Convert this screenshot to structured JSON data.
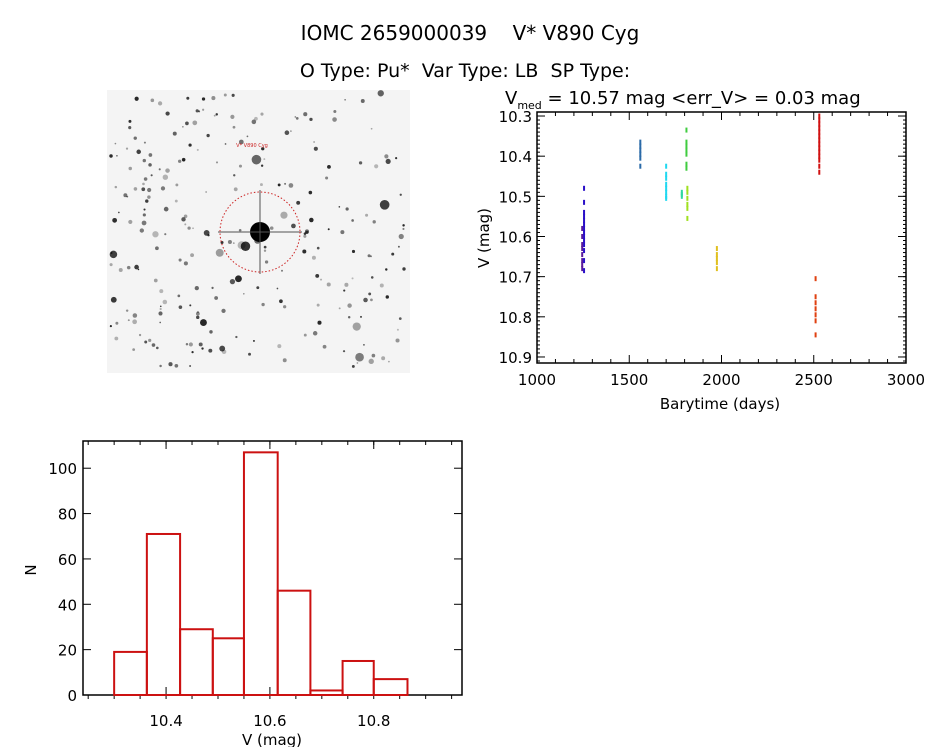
{
  "header": {
    "title": "IOMC 2659000039    V* V890 Cyg",
    "subtitle": "O Type: Pu*  Var Type: LB  SP Type:"
  },
  "image_panel": {
    "icon": "star-field-image",
    "target_label": "V* V890 Cyg",
    "circle_color": "#cc2222"
  },
  "chart_data": [
    {
      "type": "scatter",
      "title_prefix": "V",
      "title_sub": "med",
      "title_rest": " = 10.57 mag <err_V> = 0.03 mag",
      "xlabel": "Barytime (days)",
      "ylabel": "V (mag)",
      "xlim": [
        1000,
        3000
      ],
      "ylim": [
        10.29,
        10.915
      ],
      "y_inverted": true,
      "xticks": [
        "1000",
        "1500",
        "2000",
        "2500",
        "3000"
      ],
      "yticks": [
        "10.3",
        "10.4",
        "10.5",
        "10.6",
        "10.7",
        "10.8",
        "10.9"
      ],
      "series": [
        {
          "name": "group1",
          "color": "#5a1a9a",
          "x": [
            1245,
            1245,
            1245,
            1245,
            1245,
            1245,
            1245,
            1245
          ],
          "y": [
            10.58,
            10.6,
            10.62,
            10.63,
            10.645,
            10.66,
            10.67,
            10.68
          ]
        },
        {
          "name": "group2",
          "color": "#2a10c8",
          "x": [
            1255,
            1255,
            1255,
            1255,
            1255,
            1255,
            1255,
            1255,
            1255,
            1255,
            1255,
            1255,
            1255,
            1255
          ],
          "y": [
            10.48,
            10.515,
            10.54,
            10.55,
            10.56,
            10.57,
            10.58,
            10.59,
            10.6,
            10.61,
            10.62,
            10.635,
            10.66,
            10.685
          ]
        },
        {
          "name": "group3",
          "color": "#2a6aa8",
          "x": [
            1560,
            1560,
            1560,
            1560,
            1560,
            1560
          ],
          "y": [
            10.365,
            10.375,
            10.385,
            10.395,
            10.405,
            10.425
          ]
        },
        {
          "name": "group4",
          "color": "#20d8f0",
          "x": [
            1700,
            1700,
            1700,
            1700,
            1700,
            1700,
            1700,
            1700
          ],
          "y": [
            10.425,
            10.445,
            10.455,
            10.47,
            10.48,
            10.49,
            10.5,
            10.505
          ]
        },
        {
          "name": "group5",
          "color": "#30d8a0",
          "x": [
            1785,
            1785,
            1785
          ],
          "y": [
            10.49,
            10.495,
            10.5
          ]
        },
        {
          "name": "group6",
          "color": "#40cc40",
          "x": [
            1810,
            1810,
            1810,
            1810,
            1810,
            1810,
            1810
          ],
          "y": [
            10.335,
            10.365,
            10.375,
            10.385,
            10.395,
            10.42,
            10.43
          ]
        },
        {
          "name": "group7",
          "color": "#a0e020",
          "x": [
            1815,
            1815,
            1815,
            1815,
            1815,
            1815
          ],
          "y": [
            10.48,
            10.49,
            10.505,
            10.52,
            10.53,
            10.555
          ]
        },
        {
          "name": "group8",
          "color": "#e0c020",
          "x": [
            1975,
            1975,
            1975,
            1975,
            1975
          ],
          "y": [
            10.63,
            10.645,
            10.655,
            10.665,
            10.68
          ]
        },
        {
          "name": "group9",
          "color": "#e04010",
          "x": [
            2510,
            2510,
            2510,
            2510,
            2510,
            2510,
            2510
          ],
          "y": [
            10.705,
            10.75,
            10.765,
            10.78,
            10.795,
            10.81,
            10.845
          ]
        },
        {
          "name": "group10",
          "color": "#d01010",
          "x": [
            2530,
            2530,
            2530,
            2530,
            2530,
            2530,
            2530,
            2530,
            2530,
            2530,
            2530,
            2530,
            2530,
            2530
          ],
          "y": [
            10.3,
            10.31,
            10.32,
            10.33,
            10.34,
            10.35,
            10.36,
            10.37,
            10.38,
            10.39,
            10.4,
            10.41,
            10.425,
            10.44
          ]
        }
      ]
    },
    {
      "type": "bar",
      "title": "",
      "xlabel": "V (mag)",
      "ylabel": "N",
      "xlim": [
        10.24,
        10.97
      ],
      "ylim": [
        0,
        112
      ],
      "xticks": [
        "10.4",
        "10.6",
        "10.8"
      ],
      "yticks": [
        "0",
        "20",
        "40",
        "60",
        "80",
        "100"
      ],
      "bin_edges": [
        10.3,
        10.363,
        10.427,
        10.49,
        10.55,
        10.615,
        10.678,
        10.74,
        10.8,
        10.865
      ],
      "values": [
        19,
        71,
        29,
        25,
        107,
        46,
        2,
        15,
        7
      ],
      "color": "#cc1111"
    }
  ]
}
